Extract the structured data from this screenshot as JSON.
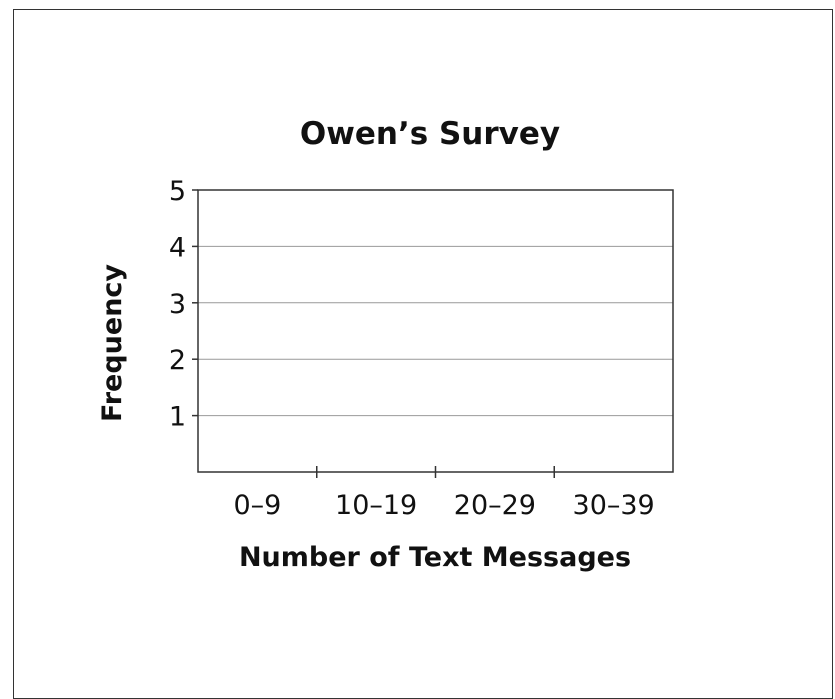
{
  "chart_data": {
    "type": "bar",
    "title": "Owen’s Survey",
    "xlabel": "Number of Text Messages",
    "ylabel": "Frequency",
    "categories": [
      "0–9",
      "10–19",
      "20–29",
      "30–39"
    ],
    "values": [
      null,
      null,
      null,
      null
    ],
    "ylim": [
      0,
      5
    ],
    "yticks": [
      1,
      2,
      3,
      4,
      5
    ],
    "grid": true,
    "colors": {
      "axis": "#333333",
      "grid": "#999999",
      "text": "#111111"
    }
  }
}
